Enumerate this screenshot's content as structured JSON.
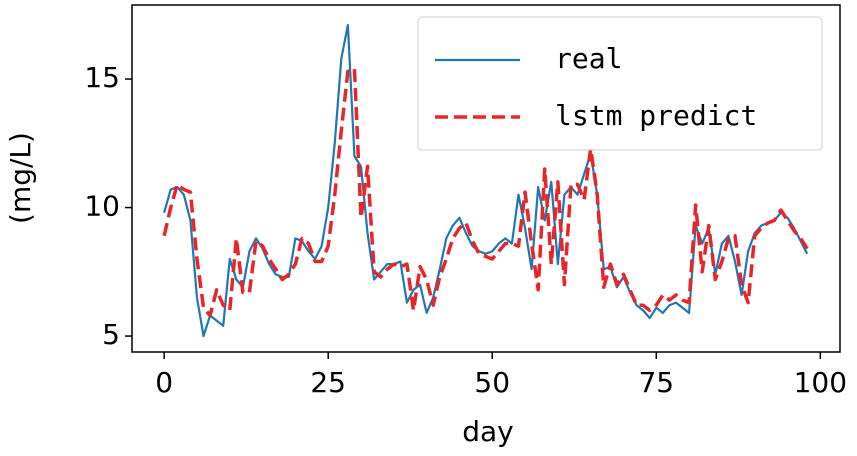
{
  "chart_data": {
    "type": "line",
    "xlabel": "day",
    "ylabel": "(mg/L)",
    "x": [
      0,
      1,
      2,
      3,
      4,
      5,
      6,
      7,
      8,
      9,
      10,
      11,
      12,
      13,
      14,
      15,
      16,
      17,
      18,
      19,
      20,
      21,
      22,
      23,
      24,
      25,
      26,
      27,
      28,
      29,
      30,
      31,
      32,
      33,
      34,
      35,
      36,
      37,
      38,
      39,
      40,
      41,
      42,
      43,
      44,
      45,
      46,
      47,
      48,
      49,
      50,
      51,
      52,
      53,
      54,
      55,
      56,
      57,
      58,
      59,
      60,
      61,
      62,
      63,
      64,
      65,
      66,
      67,
      68,
      69,
      70,
      71,
      72,
      73,
      74,
      75,
      76,
      77,
      78,
      79,
      80,
      81,
      82,
      83,
      84,
      85,
      86,
      87,
      88,
      89,
      90,
      91,
      92,
      93,
      94,
      95,
      96,
      97,
      98
    ],
    "series": [
      {
        "name": "real",
        "color": "#1f77b4",
        "style": "solid",
        "values": [
          9.8,
          10.7,
          10.8,
          10.5,
          9.5,
          6.5,
          5.0,
          5.8,
          5.6,
          5.4,
          8.0,
          7.2,
          6.9,
          8.3,
          8.8,
          8.4,
          7.8,
          7.4,
          7.3,
          7.3,
          8.8,
          8.7,
          8.3,
          8.0,
          8.5,
          10.0,
          12.5,
          15.8,
          17.1,
          12.0,
          11.6,
          9.0,
          7.2,
          7.5,
          7.8,
          7.8,
          7.9,
          6.3,
          6.8,
          7.0,
          5.9,
          6.5,
          7.6,
          8.8,
          9.3,
          9.6,
          9.0,
          8.5,
          8.3,
          8.2,
          8.3,
          8.6,
          8.8,
          8.6,
          10.5,
          9.2,
          7.6,
          10.8,
          9.5,
          11.0,
          7.8,
          10.5,
          10.8,
          10.5,
          11.3,
          12.1,
          10.5,
          7.6,
          7.7,
          6.9,
          7.3,
          6.7,
          6.2,
          6.0,
          5.7,
          6.1,
          5.9,
          6.2,
          6.3,
          6.1,
          5.9,
          9.3,
          8.6,
          9.2,
          7.4,
          8.6,
          8.9,
          7.9,
          6.6,
          8.3,
          9.0,
          9.3,
          9.4,
          9.5,
          9.8,
          9.6,
          9.2,
          8.7,
          8.2
        ]
      },
      {
        "name": "lstm predict",
        "color": "#e8262a",
        "style": "dashed",
        "values": [
          8.9,
          10.0,
          10.9,
          10.7,
          10.6,
          8.0,
          6.1,
          5.8,
          6.8,
          6.2,
          6.0,
          8.8,
          6.7,
          6.7,
          8.7,
          8.5,
          8.0,
          7.6,
          7.2,
          7.4,
          7.8,
          8.8,
          8.6,
          7.9,
          7.9,
          8.5,
          10.5,
          13.0,
          15.3,
          15.4,
          9.6,
          11.6,
          7.5,
          7.3,
          7.6,
          7.8,
          7.7,
          7.8,
          6.0,
          7.7,
          7.2,
          6.2,
          7.3,
          8.0,
          8.8,
          9.2,
          9.4,
          8.7,
          8.2,
          8.1,
          8.0,
          8.3,
          8.6,
          8.6,
          8.5,
          10.6,
          8.6,
          6.8,
          11.5,
          7.8,
          11.0,
          7.0,
          10.9,
          10.9,
          10.3,
          12.3,
          10.5,
          6.9,
          7.8,
          7.0,
          7.4,
          6.8,
          6.2,
          6.2,
          6.0,
          6.2,
          6.6,
          6.4,
          6.6,
          6.4,
          6.3,
          10.1,
          7.5,
          9.3,
          7.2,
          7.9,
          8.8,
          8.9,
          7.0,
          6.3,
          8.9,
          9.2,
          9.4,
          9.5,
          9.9,
          9.5,
          9.1,
          8.8,
          8.4
        ]
      }
    ],
    "xlim": [
      -4.9,
      103
    ],
    "ylim": [
      4.38,
      17.88
    ],
    "xticks": [
      0,
      25,
      50,
      75,
      100
    ],
    "yticks": [
      5,
      10,
      15
    ],
    "legend": "upper right"
  }
}
